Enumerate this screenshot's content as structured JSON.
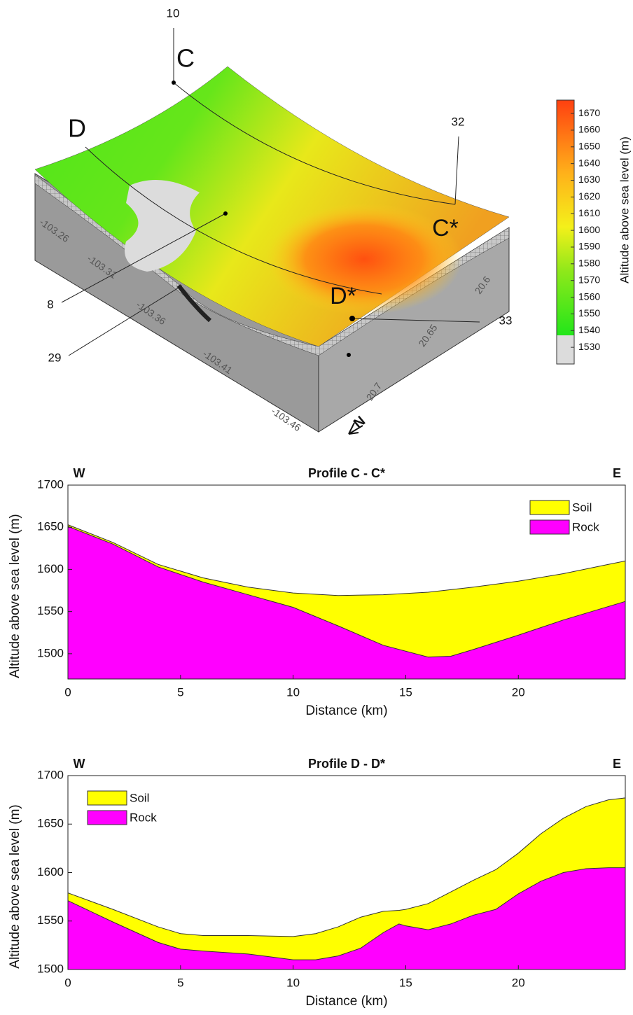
{
  "surface_map": {
    "point_labels": [
      "C",
      "D",
      "C*",
      "D*"
    ],
    "well_ids": [
      "10",
      "32",
      "8",
      "29",
      "33"
    ],
    "longitude_ticks": [
      -103.26,
      -103.31,
      -103.36,
      -103.41,
      -103.46
    ],
    "latitude_ticks": [
      20.6,
      20.65,
      20.7
    ],
    "north": "N",
    "colorbar": {
      "label": "Altitude above sea level (m)",
      "lim": [
        1520,
        1678
      ],
      "ticks": [
        1530,
        1540,
        1550,
        1560,
        1570,
        1580,
        1590,
        1600,
        1610,
        1620,
        1630,
        1640,
        1650,
        1660,
        1670
      ]
    }
  },
  "chart_data": [
    {
      "type": "area",
      "title": "Profile C - C*",
      "left_label": "W",
      "right_label": "E",
      "xlabel": "Distance (km)",
      "ylabel": "Altitude above sea level (m)",
      "x": [
        0,
        2,
        4,
        6,
        8,
        10,
        12,
        14,
        16,
        17,
        18,
        20,
        22,
        24,
        24.75
      ],
      "series": [
        {
          "name": "Soil",
          "color": "#ffff00",
          "values": [
            1653,
            1632,
            1606,
            1590,
            1579,
            1572,
            1569,
            1570,
            1573,
            1576,
            1579,
            1586,
            1595,
            1606,
            1610
          ]
        },
        {
          "name": "Rock",
          "color": "#ff00ff",
          "values": [
            1651,
            1630,
            1603,
            1585,
            1570,
            1555,
            1533,
            1510,
            1496,
            1497,
            1505,
            1522,
            1540,
            1556,
            1562
          ]
        }
      ],
      "xlim": [
        0,
        24.75
      ],
      "xticks": [
        0,
        5,
        10,
        15,
        20
      ],
      "ylim": [
        1470,
        1700
      ],
      "yticks": [
        1500,
        1550,
        1600,
        1650,
        1700
      ],
      "legend": "upper right"
    },
    {
      "type": "area",
      "title": "Profile D - D*",
      "left_label": "W",
      "right_label": "E",
      "xlabel": "Distance (km)",
      "ylabel": "Altitude above sea level (m)",
      "x": [
        0,
        2,
        4,
        5,
        6,
        8,
        10,
        11,
        12,
        13,
        14,
        14.7,
        15,
        16,
        17,
        18,
        19,
        20,
        21,
        22,
        23,
        24,
        24.75
      ],
      "series": [
        {
          "name": "Soil",
          "color": "#ffff00",
          "values": [
            1579,
            1562,
            1544,
            1537,
            1535,
            1535,
            1534,
            1537,
            1544,
            1554,
            1560,
            1561,
            1562,
            1568,
            1580,
            1592,
            1603,
            1620,
            1640,
            1656,
            1668,
            1675,
            1677
          ]
        },
        {
          "name": "Rock",
          "color": "#ff00ff",
          "values": [
            1571,
            1549,
            1528,
            1521,
            1519,
            1516,
            1510,
            1510,
            1514,
            1522,
            1538,
            1547,
            1545,
            1541,
            1547,
            1556,
            1562,
            1578,
            1591,
            1600,
            1604,
            1605,
            1605
          ]
        }
      ],
      "xlim": [
        0,
        24.75
      ],
      "xticks": [
        0,
        5,
        10,
        15,
        20
      ],
      "ylim": [
        1500,
        1700
      ],
      "yticks": [
        1500,
        1550,
        1600,
        1650,
        1700
      ],
      "legend": "upper left"
    }
  ]
}
